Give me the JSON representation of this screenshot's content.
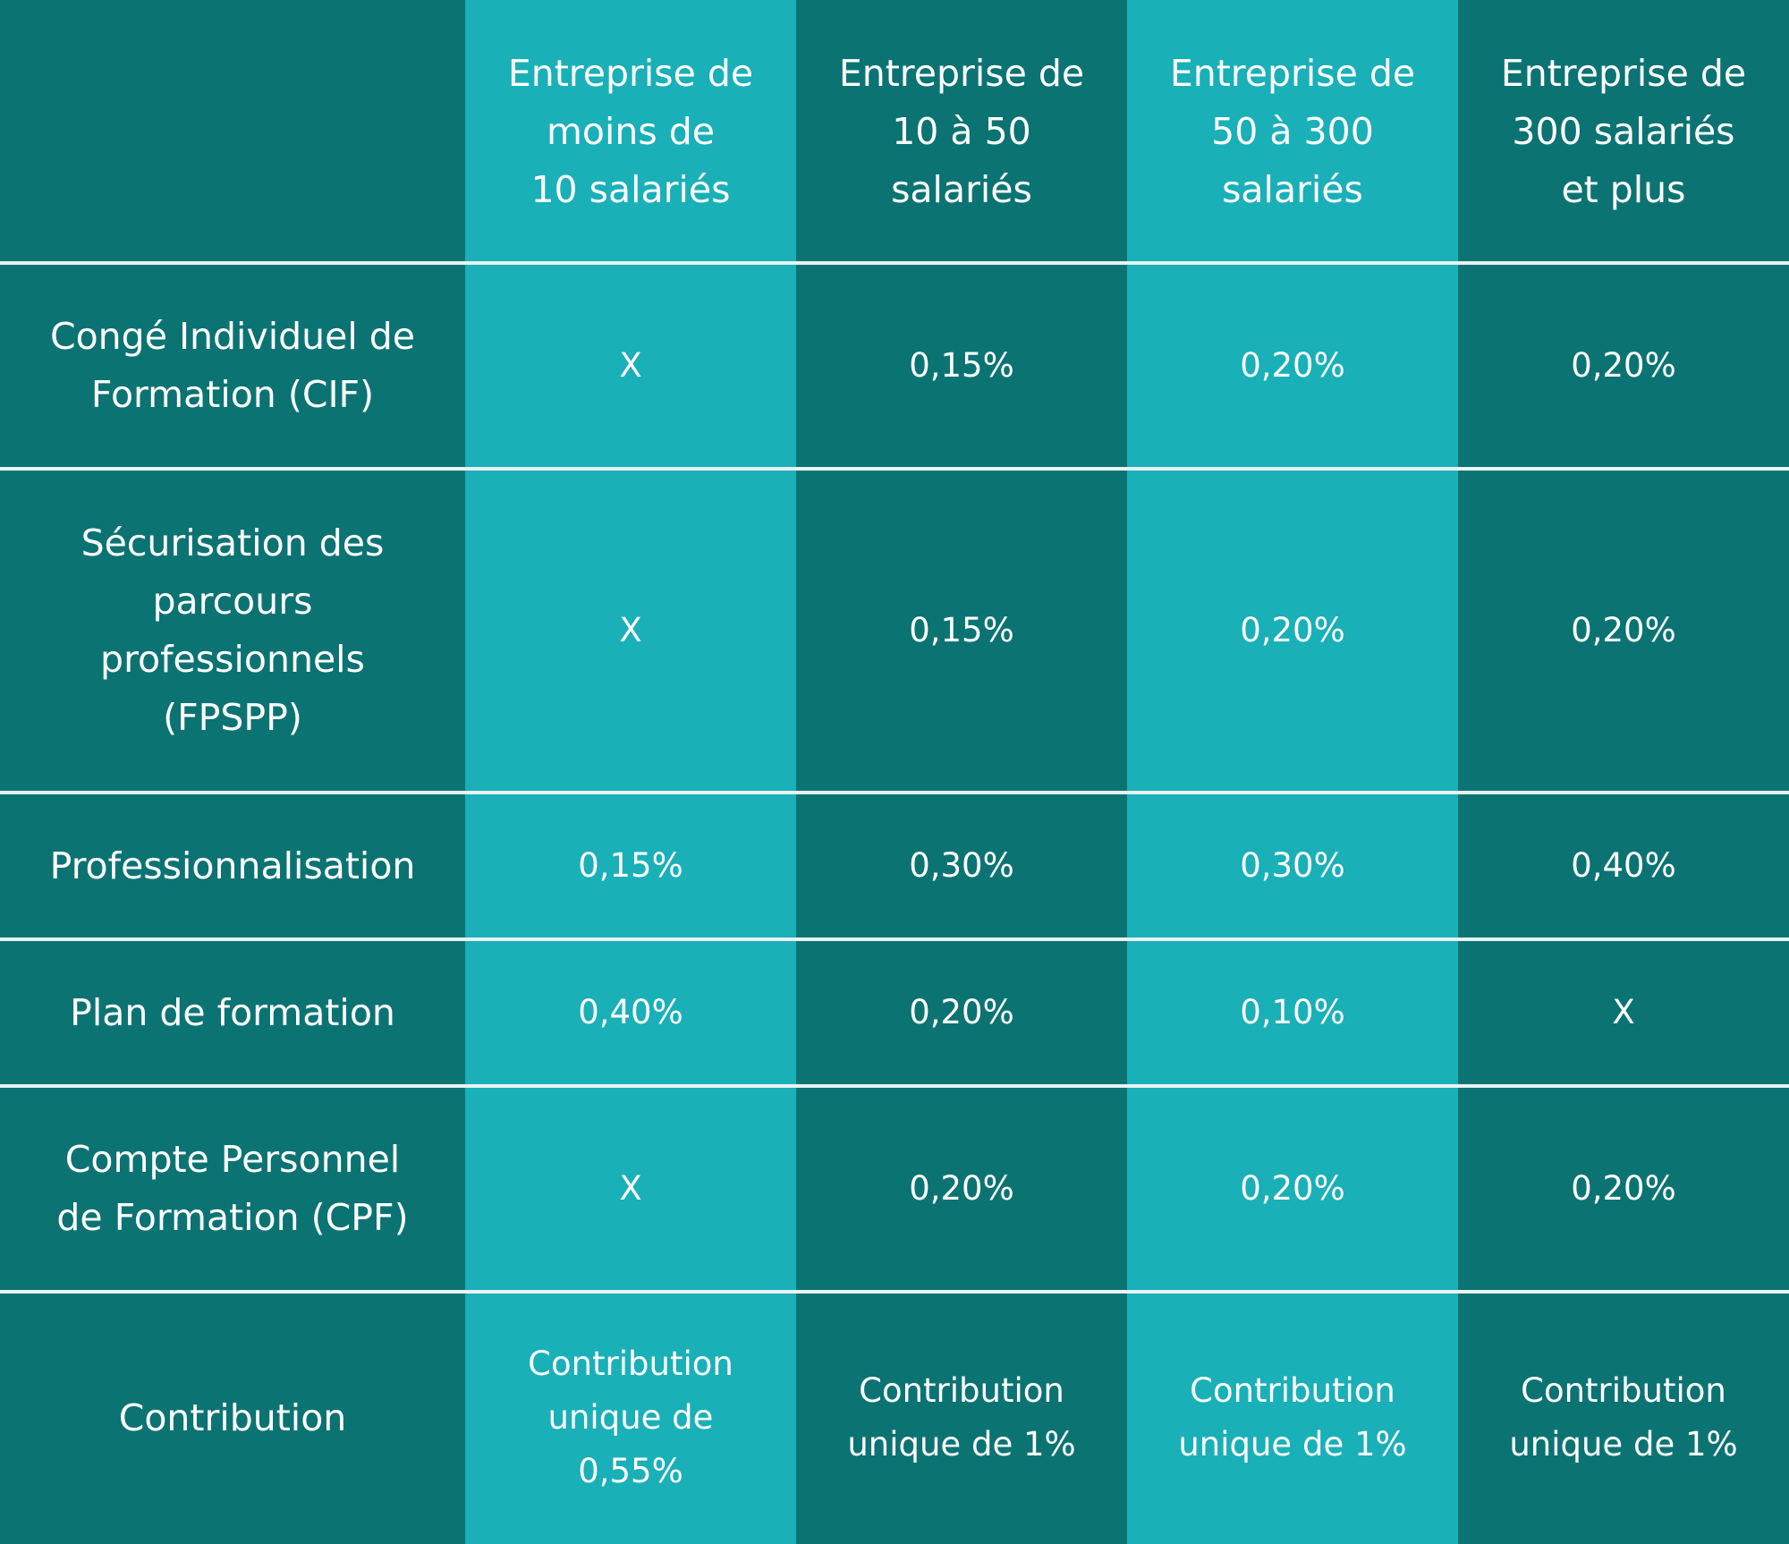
{
  "columns": [
    "Entreprise de\nmoins de\n10 salariés",
    "Entreprise de\n10 à 50\nsalariés",
    "Entreprise de\n50 à 300\nsalariés",
    "Entreprise de\n300 salariés\net plus"
  ],
  "rows": [
    {
      "label": "Congé Individuel de\nFormation (CIF)",
      "values": [
        "X",
        "0,15%",
        "0,20%",
        "0,20%"
      ]
    },
    {
      "label": "Sécurisation des\nparcours\nprofessionnels\n(FPSPP)",
      "values": [
        "X",
        "0,15%",
        "0,20%",
        "0,20%"
      ]
    },
    {
      "label": "Professionnalisation",
      "values": [
        "0,15%",
        "0,30%",
        "0,30%",
        "0,40%"
      ]
    },
    {
      "label": "Plan de formation",
      "values": [
        "0,40%",
        "0,20%",
        "0,10%",
        "X"
      ]
    },
    {
      "label": "Compte Personnel\nde Formation (CPF)",
      "values": [
        "X",
        "0,20%",
        "0,20%",
        "0,20%"
      ]
    },
    {
      "label": "Contribution",
      "values": [
        "Contribution\nunique de\n0,55%",
        "Contribution\nunique de 1%",
        "Contribution\nunique de 1%",
        "Contribution\nunique de 1%"
      ]
    }
  ],
  "colors": {
    "dark_column": "#0c7373",
    "light_column": "#19b0b8",
    "row_divider": "#e8f3f3",
    "text": "#ffffff"
  }
}
